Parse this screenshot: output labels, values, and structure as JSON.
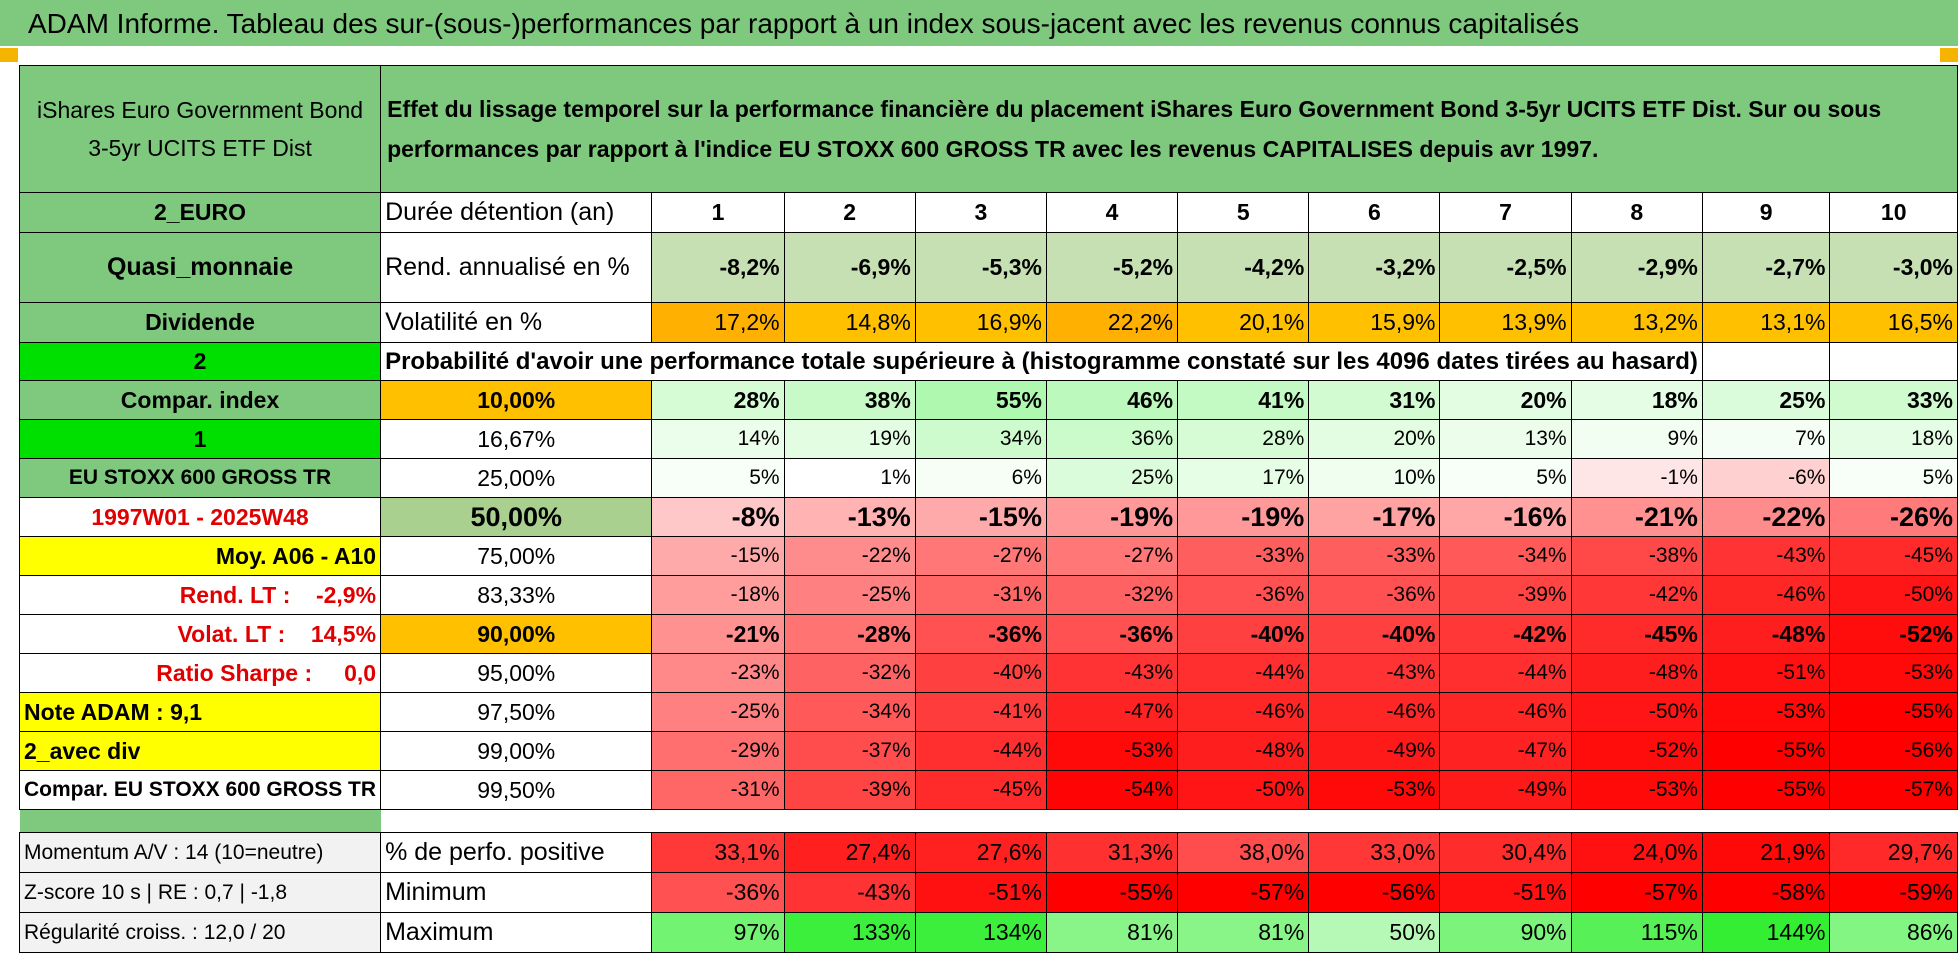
{
  "title": "ADAM Informe. Tableau des sur-(sous-)performances par rapport à un index sous-jacent avec les revenus connus capitalisés",
  "fund_name": "iShares Euro Government Bond 3-5yr UCITS ETF Dist",
  "description": "Effet du lissage temporel sur la performance financière du placement iShares Euro Government Bond 3-5yr UCITS ETF Dist. Sur ou sous performances par rapport à l'indice EU STOXX 600 GROSS TR avec les revenus CAPITALISES depuis avr 1997.",
  "left_labels": {
    "currency": "2_EURO",
    "category": "Quasi_monnaie",
    "dividend": "Dividende",
    "code1": "2",
    "compar_index": "Compar. index",
    "code2": "1",
    "index_name": "EU STOXX 600 GROSS TR",
    "period": "1997W01 - 2025W48",
    "moy": "Moy. A06 - A10",
    "rend_lt": "Rend. LT :    -2,9%",
    "volat_lt": "Volat. LT :    14,5%",
    "sharpe": "Ratio Sharpe :     0,0",
    "note": "Note ADAM : 9,1",
    "avec_div": "2_avec div",
    "compar_full": "Compar. EU STOXX 600 GROSS TR",
    "momentum": "Momentum A/V : 14 (10=neutre)",
    "zscore": "Z-score 10 s | RE : 0,7 | -1,8",
    "regularite": "Régularité croiss. : 12,0 / 20"
  },
  "row_labels": {
    "duration": "Durée détention (an)",
    "rend": "Rend. annualisé en %",
    "vol": "Volatilité en %",
    "prob": "Probabilité d'avoir une performance totale supérieure à (histogramme constaté sur les 4096 dates tirées au hasard)",
    "positive": "% de perfo. positive",
    "minimum": "Minimum",
    "maximum": "Maximum"
  },
  "years": [
    "1",
    "2",
    "3",
    "4",
    "5",
    "6",
    "7",
    "8",
    "9",
    "10"
  ],
  "rend": [
    "-8,2%",
    "-6,9%",
    "-5,3%",
    "-5,2%",
    "-4,2%",
    "-3,2%",
    "-2,5%",
    "-2,9%",
    "-2,7%",
    "-3,0%"
  ],
  "vol": [
    "17,2%",
    "14,8%",
    "16,9%",
    "22,2%",
    "20,1%",
    "15,9%",
    "13,9%",
    "13,2%",
    "13,1%",
    "16,5%"
  ],
  "percentiles": [
    {
      "p": "10,00%",
      "values": [
        "28%",
        "38%",
        "55%",
        "46%",
        "41%",
        "31%",
        "20%",
        "18%",
        "25%",
        "33%"
      ]
    },
    {
      "p": "16,67%",
      "values": [
        "14%",
        "19%",
        "34%",
        "36%",
        "28%",
        "20%",
        "13%",
        "9%",
        "7%",
        "18%"
      ]
    },
    {
      "p": "25,00%",
      "values": [
        "5%",
        "1%",
        "6%",
        "25%",
        "17%",
        "10%",
        "5%",
        "-1%",
        "-6%",
        "5%"
      ]
    },
    {
      "p": "50,00%",
      "values": [
        "-8%",
        "-13%",
        "-15%",
        "-19%",
        "-19%",
        "-17%",
        "-16%",
        "-21%",
        "-22%",
        "-26%"
      ]
    },
    {
      "p": "75,00%",
      "values": [
        "-15%",
        "-22%",
        "-27%",
        "-27%",
        "-33%",
        "-33%",
        "-34%",
        "-38%",
        "-43%",
        "-45%"
      ]
    },
    {
      "p": "83,33%",
      "values": [
        "-18%",
        "-25%",
        "-31%",
        "-32%",
        "-36%",
        "-36%",
        "-39%",
        "-42%",
        "-46%",
        "-50%"
      ]
    },
    {
      "p": "90,00%",
      "values": [
        "-21%",
        "-28%",
        "-36%",
        "-36%",
        "-40%",
        "-40%",
        "-42%",
        "-45%",
        "-48%",
        "-52%"
      ]
    },
    {
      "p": "95,00%",
      "values": [
        "-23%",
        "-32%",
        "-40%",
        "-43%",
        "-44%",
        "-43%",
        "-44%",
        "-48%",
        "-51%",
        "-53%"
      ]
    },
    {
      "p": "97,50%",
      "values": [
        "-25%",
        "-34%",
        "-41%",
        "-47%",
        "-46%",
        "-46%",
        "-46%",
        "-50%",
        "-53%",
        "-55%"
      ]
    },
    {
      "p": "99,00%",
      "values": [
        "-29%",
        "-37%",
        "-44%",
        "-53%",
        "-48%",
        "-49%",
        "-47%",
        "-52%",
        "-55%",
        "-56%"
      ]
    },
    {
      "p": "99,50%",
      "values": [
        "-31%",
        "-39%",
        "-45%",
        "-54%",
        "-50%",
        "-53%",
        "-49%",
        "-53%",
        "-55%",
        "-57%"
      ]
    }
  ],
  "positive": [
    "33,1%",
    "27,4%",
    "27,6%",
    "31,3%",
    "38,0%",
    "33,0%",
    "30,4%",
    "24,0%",
    "21,9%",
    "29,7%"
  ],
  "minimum": [
    "-36%",
    "-43%",
    "-51%",
    "-55%",
    "-57%",
    "-56%",
    "-51%",
    "-57%",
    "-58%",
    "-59%"
  ],
  "maximum": [
    "97%",
    "133%",
    "134%",
    "81%",
    "81%",
    "50%",
    "90%",
    "115%",
    "144%",
    "86%"
  ],
  "colors": {
    "header_green": "#7fc97f",
    "bright_green": "#00e000",
    "yellow": "#ffff00",
    "orange": "#ffc000",
    "red_text": "#e00000"
  }
}
